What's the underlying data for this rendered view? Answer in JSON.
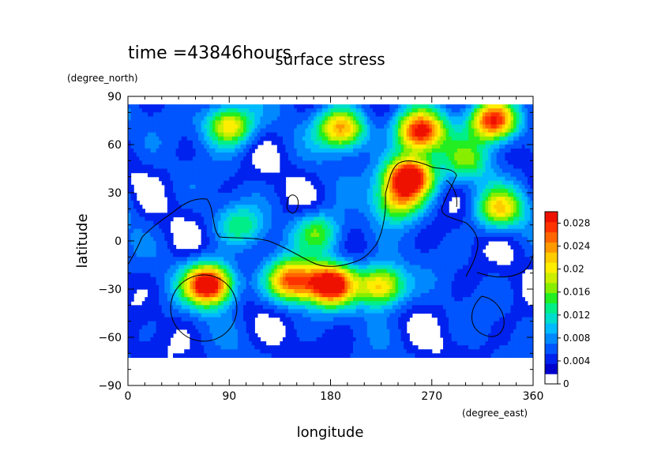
{
  "chart_data": {
    "type": "heatmap",
    "header_time": "time =43846hours",
    "title": "surface stress",
    "xlabel": "longitude",
    "ylabel": "latitude",
    "x_units": "(degree_east)",
    "y_units": "(degree_north)",
    "xlim": [
      0,
      360
    ],
    "ylim": [
      -90,
      90
    ],
    "x_ticks": [
      "0",
      "90",
      "180",
      "270",
      "360"
    ],
    "y_ticks": [
      "90",
      "60",
      "30",
      "0",
      "−30",
      "−60",
      "−90"
    ],
    "colorbar": {
      "min": 0,
      "max": 0.03,
      "tick_labels": [
        "0.028",
        "0.024",
        "0.02",
        "0.016",
        "0.012",
        "0.008",
        "0.004",
        "0"
      ],
      "colors": [
        "#0000cc",
        "#0022ee",
        "#0055ff",
        "#0088ff",
        "#00bbff",
        "#00ddcc",
        "#00ee88",
        "#22ee22",
        "#88ee00",
        "#ccee00",
        "#ffee00",
        "#ffcc00",
        "#ff9900",
        "#ff6600",
        "#ff3300",
        "#ee1100"
      ]
    },
    "field_maxima": [
      {
        "lon": 250,
        "lat": 40,
        "value": 0.03
      },
      {
        "lon": 72,
        "lat": -27,
        "value": 0.03
      },
      {
        "lon": 180,
        "lat": -27,
        "value": 0.028
      },
      {
        "lon": 260,
        "lat": 68,
        "value": 0.026
      },
      {
        "lon": 325,
        "lat": 75,
        "value": 0.026
      },
      {
        "lon": 145,
        "lat": -25,
        "value": 0.022
      },
      {
        "lon": 225,
        "lat": -28,
        "value": 0.02
      },
      {
        "lon": 90,
        "lat": 72,
        "value": 0.018
      },
      {
        "lon": 190,
        "lat": 70,
        "value": 0.02
      },
      {
        "lon": 330,
        "lat": 20,
        "value": 0.016
      },
      {
        "lon": 240,
        "lat": 25,
        "value": 0.014
      },
      {
        "lon": 170,
        "lat": 5,
        "value": 0.012
      },
      {
        "lon": 300,
        "lat": 50,
        "value": 0.01
      },
      {
        "lon": 100,
        "lat": 10,
        "value": 0.008
      }
    ]
  }
}
